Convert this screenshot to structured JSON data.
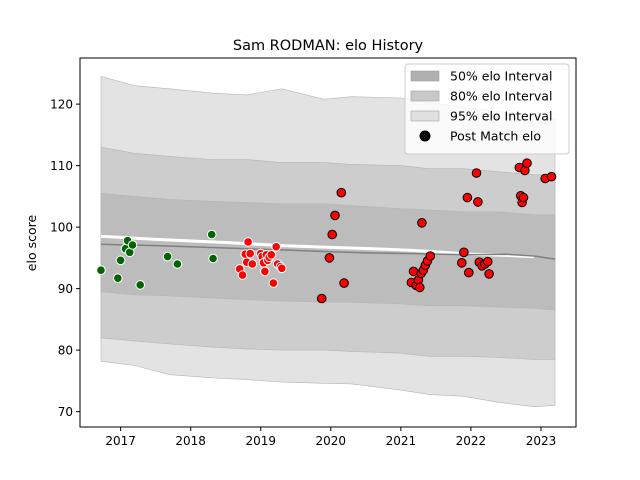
{
  "chart_data": {
    "type": "scatter",
    "title": "Sam RODMAN: elo History",
    "xlabel": "",
    "ylabel": "elo score",
    "xlim": [
      2016.42,
      2023.5
    ],
    "ylim": [
      67.5,
      127.5
    ],
    "x_ticks": [
      2017,
      2018,
      2019,
      2020,
      2021,
      2022,
      2023
    ],
    "y_ticks": [
      70,
      80,
      90,
      100,
      110,
      120
    ],
    "grid": false,
    "legend_position": "top-right",
    "legend": [
      {
        "label": "50% elo Interval",
        "kind": "band",
        "color": "#b0b0b0"
      },
      {
        "label": "80% elo Interval",
        "kind": "band",
        "color": "#c8c8c8"
      },
      {
        "label": "95% elo Interval",
        "kind": "band",
        "color": "#e0e0e0"
      },
      {
        "label": "Post Match elo",
        "kind": "marker",
        "color": "#000000"
      }
    ],
    "bands": [
      {
        "name": "95% elo Interval",
        "color": "#e3e3e3",
        "x": [
          2016.72,
          2017.2,
          2017.7,
          2018.3,
          2018.8,
          2019.3,
          2019.9,
          2020.3,
          2021.0,
          2021.4,
          2021.9,
          2022.4,
          2022.9,
          2023.2
        ],
        "upper": [
          124.5,
          123.0,
          122.5,
          121.8,
          121.5,
          122.5,
          120.8,
          121.2,
          121.0,
          120.3,
          119.5,
          118.8,
          118.2,
          117.5
        ],
        "lower": [
          78.2,
          77.5,
          76.0,
          75.5,
          75.2,
          74.8,
          74.6,
          74.5,
          73.5,
          72.8,
          72.5,
          71.5,
          70.8,
          71.0
        ]
      },
      {
        "name": "80% elo Interval",
        "color": "#cdcdcd",
        "x": [
          2016.72,
          2017.2,
          2017.7,
          2018.3,
          2018.8,
          2019.3,
          2019.9,
          2020.3,
          2021.0,
          2021.4,
          2021.9,
          2022.4,
          2022.9,
          2023.2
        ],
        "upper": [
          113.0,
          112.0,
          111.5,
          111.0,
          111.0,
          110.5,
          110.5,
          110.2,
          110.0,
          109.5,
          109.5,
          109.0,
          108.5,
          108.5
        ],
        "lower": [
          82.0,
          81.5,
          81.0,
          80.5,
          80.2,
          80.0,
          80.0,
          79.8,
          79.5,
          79.0,
          79.0,
          78.8,
          78.5,
          78.5
        ]
      },
      {
        "name": "50% elo Interval",
        "color": "#bcbcbc",
        "x": [
          2016.72,
          2017.2,
          2017.7,
          2018.3,
          2018.8,
          2019.3,
          2019.9,
          2020.3,
          2021.0,
          2021.4,
          2021.9,
          2022.4,
          2022.9,
          2023.2
        ],
        "upper": [
          105.5,
          105.0,
          104.5,
          104.2,
          104.0,
          103.8,
          103.8,
          103.5,
          103.0,
          102.8,
          102.5,
          102.5,
          102.0,
          102.0
        ],
        "lower": [
          89.5,
          89.0,
          88.8,
          88.5,
          88.2,
          88.0,
          87.8,
          87.8,
          87.5,
          87.2,
          87.2,
          87.0,
          86.8,
          86.5
        ]
      }
    ],
    "mean_line": {
      "x": [
        2016.72,
        2017.5,
        2018.5,
        2019.3,
        2020.0,
        2020.6,
        2021.2,
        2021.6,
        2022.0,
        2022.5,
        2022.9,
        2023.2
      ],
      "y": [
        97.2,
        97.0,
        96.6,
        96.3,
        96.0,
        95.8,
        95.7,
        95.6,
        95.5,
        95.6,
        95.3,
        94.8
      ],
      "color": "#808080"
    },
    "white_line": {
      "x": [
        2016.72,
        2017.5,
        2018.5,
        2019.3,
        2020.0,
        2020.6,
        2021.2,
        2021.6,
        2022.0,
        2022.5,
        2022.9
      ],
      "y": [
        98.5,
        98.0,
        97.5,
        97.0,
        96.7,
        96.5,
        96.2,
        95.9,
        95.6,
        95.4,
        95.2
      ],
      "color": "#ffffff"
    },
    "series": [
      {
        "fill": "#006400",
        "edge": "#ffffff",
        "points": [
          [
            2016.72,
            93.0
          ],
          [
            2016.96,
            91.7
          ],
          [
            2017.0,
            94.6
          ],
          [
            2017.07,
            96.5
          ],
          [
            2017.1,
            97.8
          ],
          [
            2017.13,
            95.9
          ],
          [
            2017.17,
            97.1
          ],
          [
            2017.28,
            90.6
          ],
          [
            2017.67,
            95.2
          ],
          [
            2017.81,
            94.0
          ],
          [
            2018.3,
            98.8
          ],
          [
            2018.32,
            94.9
          ]
        ]
      },
      {
        "fill": "#ff0000",
        "edge": "#ffffff",
        "points": [
          [
            2018.7,
            93.2
          ],
          [
            2018.74,
            92.2
          ],
          [
            2018.78,
            95.6
          ],
          [
            2018.8,
            94.3
          ],
          [
            2018.82,
            97.6
          ],
          [
            2018.85,
            95.7
          ],
          [
            2018.88,
            94.0
          ],
          [
            2019.0,
            95.7
          ],
          [
            2019.02,
            95.2
          ],
          [
            2019.04,
            94.2
          ],
          [
            2019.06,
            92.8
          ],
          [
            2019.08,
            95.5
          ],
          [
            2019.1,
            94.6
          ],
          [
            2019.12,
            95.1
          ],
          [
            2019.15,
            95.5
          ],
          [
            2019.18,
            90.9
          ],
          [
            2019.22,
            96.8
          ],
          [
            2019.24,
            94.0
          ],
          [
            2019.28,
            93.6
          ],
          [
            2019.3,
            93.3
          ]
        ]
      },
      {
        "fill": "#ff0000",
        "edge": "#000000",
        "points": [
          [
            2019.87,
            88.4
          ],
          [
            2019.98,
            95.0
          ],
          [
            2020.02,
            98.8
          ],
          [
            2020.06,
            101.9
          ],
          [
            2020.15,
            105.6
          ],
          [
            2020.19,
            90.9
          ],
          [
            2021.15,
            91.0
          ],
          [
            2021.18,
            92.8
          ],
          [
            2021.22,
            90.5
          ],
          [
            2021.25,
            91.4
          ],
          [
            2021.27,
            90.2
          ],
          [
            2021.29,
            92.5
          ],
          [
            2021.3,
            100.7
          ],
          [
            2021.32,
            93.0
          ],
          [
            2021.35,
            93.8
          ],
          [
            2021.38,
            94.5
          ],
          [
            2021.42,
            95.3
          ],
          [
            2021.87,
            94.2
          ],
          [
            2021.9,
            95.9
          ],
          [
            2021.95,
            104.8
          ],
          [
            2021.97,
            92.6
          ],
          [
            2022.08,
            108.8
          ],
          [
            2022.1,
            104.1
          ],
          [
            2022.12,
            94.3
          ],
          [
            2022.16,
            93.7
          ],
          [
            2022.2,
            94.0
          ],
          [
            2022.24,
            94.4
          ],
          [
            2022.26,
            92.4
          ],
          [
            2022.69,
            109.7
          ],
          [
            2022.71,
            105.1
          ],
          [
            2022.73,
            104.0
          ],
          [
            2022.75,
            104.8
          ],
          [
            2022.77,
            109.2
          ],
          [
            2022.8,
            110.4
          ],
          [
            2023.06,
            107.9
          ],
          [
            2023.15,
            108.2
          ]
        ]
      }
    ]
  }
}
